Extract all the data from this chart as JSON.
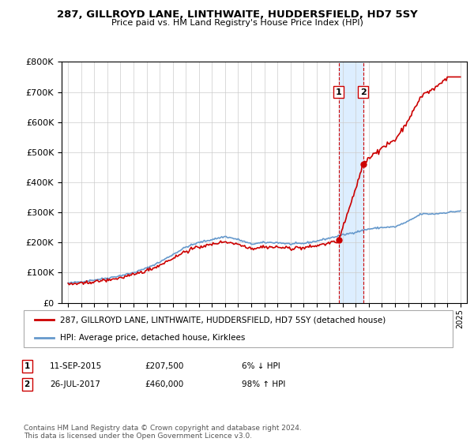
{
  "title": "287, GILLROYD LANE, LINTHWAITE, HUDDERSFIELD, HD7 5SY",
  "subtitle": "Price paid vs. HM Land Registry's House Price Index (HPI)",
  "legend_line1": "287, GILLROYD LANE, LINTHWAITE, HUDDERSFIELD, HD7 5SY (detached house)",
  "legend_line2": "HPI: Average price, detached house, Kirklees",
  "transaction1_date": "11-SEP-2015",
  "transaction1_price": "£207,500",
  "transaction1_hpi": "6% ↓ HPI",
  "transaction2_date": "26-JUL-2017",
  "transaction2_price": "£460,000",
  "transaction2_hpi": "98% ↑ HPI",
  "footnote": "Contains HM Land Registry data © Crown copyright and database right 2024.\nThis data is licensed under the Open Government Licence v3.0.",
  "property_color": "#cc0000",
  "hpi_color": "#6699cc",
  "highlight_color": "#ddeeff",
  "ylim_max": 800000,
  "t1_year": 2015.69,
  "t2_year": 2017.56,
  "t1_price": 207500,
  "t2_price": 460000
}
